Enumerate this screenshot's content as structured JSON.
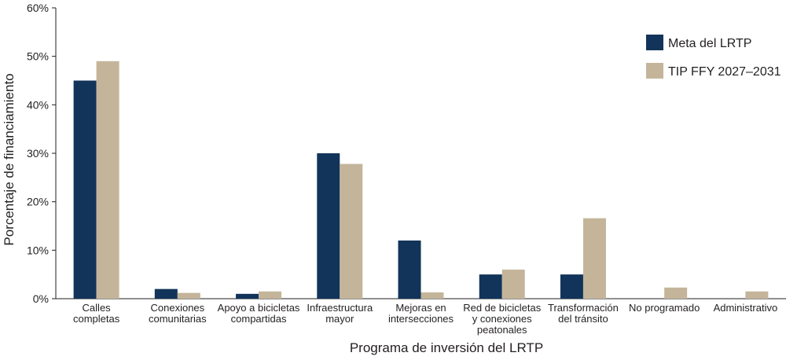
{
  "chart_data": {
    "type": "bar",
    "title": "",
    "xlabel": "Programa de inversión del LRTP",
    "ylabel": "Porcentaje de financiamiento",
    "ylim": [
      0,
      60
    ],
    "yticks": [
      "0%",
      "10%",
      "20%",
      "30%",
      "40%",
      "50%",
      "60%"
    ],
    "grid": false,
    "legend_position": "top-right",
    "categories": [
      [
        "Calles",
        "completas"
      ],
      [
        "Conexiones",
        "comunitarias"
      ],
      [
        "Apoyo a bicicletas",
        "compartidas"
      ],
      [
        "Infraestructura",
        "mayor"
      ],
      [
        "Mejoras en",
        "intersecciones"
      ],
      [
        "Red de bicicletas",
        "y conexiones",
        "peatonales"
      ],
      [
        "Transformación",
        "del tránsito"
      ],
      [
        "No programado"
      ],
      [
        "Administrativo"
      ]
    ],
    "series": [
      {
        "name": "Meta del LRTP",
        "color": "#12345a",
        "values": [
          45,
          2,
          1,
          30,
          12,
          5,
          5,
          null,
          null
        ]
      },
      {
        "name": "TIP FFY 2027–2031",
        "color": "#c4b59a",
        "values": [
          49,
          1.2,
          1.5,
          27.8,
          1.3,
          6,
          16.6,
          2.3,
          1.5
        ]
      }
    ]
  }
}
